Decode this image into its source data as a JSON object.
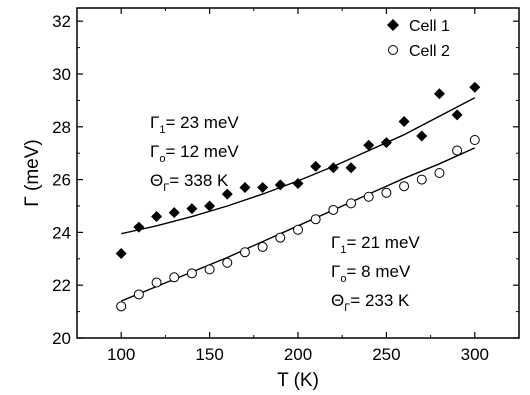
{
  "chart_data": {
    "type": "scatter",
    "xlabel": "T (K)",
    "ylabel": "Γ (meV)",
    "xlim": [
      75,
      325
    ],
    "ylim": [
      20,
      32.5
    ],
    "xticks": [
      100,
      150,
      200,
      250,
      300
    ],
    "yticks": [
      20,
      22,
      24,
      26,
      28,
      30,
      32
    ],
    "grid": false,
    "legend_position": "top-right",
    "series": [
      {
        "name": "Cell 1",
        "marker": "filled-diamond",
        "color": "#000000",
        "x": [
          100,
          110,
          120,
          130,
          140,
          150,
          160,
          170,
          180,
          190,
          200,
          210,
          220,
          230,
          240,
          250,
          260,
          270,
          280,
          290,
          300
        ],
        "y": [
          23.2,
          24.2,
          24.6,
          24.75,
          24.9,
          25.0,
          25.45,
          25.7,
          25.7,
          25.8,
          25.85,
          26.5,
          26.45,
          26.45,
          27.3,
          27.4,
          28.2,
          27.65,
          29.25,
          28.45,
          29.5
        ],
        "fit": {
          "x": [
            100,
            120,
            140,
            160,
            180,
            200,
            220,
            240,
            260,
            280,
            300
          ],
          "y": [
            23.95,
            24.25,
            24.6,
            25.0,
            25.45,
            25.95,
            26.5,
            27.1,
            27.7,
            28.4,
            29.1
          ]
        }
      },
      {
        "name": "Cell 2",
        "marker": "open-circle",
        "color": "#000000",
        "x": [
          100,
          110,
          120,
          130,
          140,
          150,
          160,
          170,
          180,
          190,
          200,
          210,
          220,
          230,
          240,
          250,
          260,
          270,
          280,
          290,
          300
        ],
        "y": [
          21.2,
          21.65,
          22.1,
          22.3,
          22.45,
          22.6,
          22.85,
          23.25,
          23.45,
          23.8,
          24.1,
          24.5,
          24.85,
          25.1,
          25.35,
          25.5,
          25.75,
          26.0,
          26.25,
          27.1,
          27.5
        ],
        "fit": {
          "x": [
            100,
            120,
            140,
            160,
            180,
            200,
            220,
            240,
            260,
            280,
            300
          ],
          "y": [
            21.4,
            21.95,
            22.5,
            23.05,
            23.65,
            24.25,
            24.85,
            25.45,
            26.05,
            26.6,
            27.2
          ]
        }
      }
    ],
    "annotations": [
      {
        "lines": [
          {
            "symbol": "Γ",
            "sub": "1",
            "text": "= 23 meV"
          },
          {
            "symbol": "Γ",
            "sub": "o",
            "text": "= 12 meV"
          },
          {
            "symbol": "Θ",
            "sub": "Γ",
            "text": "= 338 K"
          }
        ]
      },
      {
        "lines": [
          {
            "symbol": "Γ",
            "sub": "1",
            "text": "= 21 meV"
          },
          {
            "symbol": "Γ",
            "sub": "o",
            "text": "= 8 meV"
          },
          {
            "symbol": "Θ",
            "sub": "Γ",
            "text": "= 233 K"
          }
        ]
      }
    ]
  }
}
